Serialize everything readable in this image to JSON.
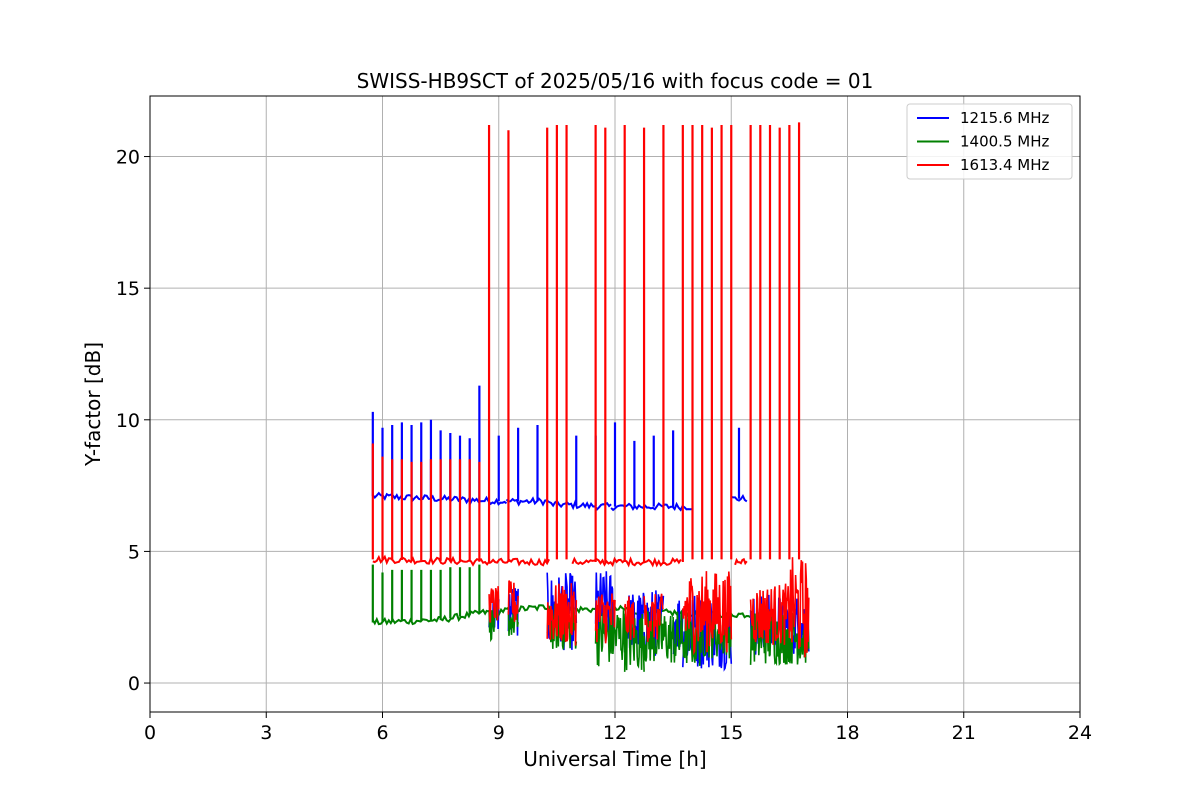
{
  "chart_data": {
    "type": "line",
    "title": "SWISS-HB9SCT of 2025/05/16 with focus code = 01",
    "xlabel": "Universal Time [h]",
    "ylabel": "Y-factor [dB]",
    "xlim": [
      0,
      24
    ],
    "ylim": [
      -1.1,
      22.3
    ],
    "xticks": [
      0,
      3,
      6,
      9,
      12,
      15,
      18,
      21,
      24
    ],
    "yticks": [
      0,
      5,
      10,
      15,
      20
    ],
    "grid": true,
    "legend_position": "top-right",
    "series": [
      {
        "name": "1215.6 MHz",
        "color": "#0000ff",
        "segments": [
          {
            "x": [
              5.75,
              9.2
            ],
            "y": [
              7.1,
              6.9
            ]
          },
          {
            "x": [
              9.2,
              10.3
            ],
            "y": [
              6.9,
              6.9
            ]
          },
          {
            "x": [
              10.3,
              11.9
            ],
            "y": [
              6.8,
              6.7
            ]
          },
          {
            "x": [
              11.9,
              14.0
            ],
            "y": [
              6.7,
              6.7
            ]
          },
          {
            "x": [
              15.0,
              15.4
            ],
            "y": [
              7.0,
              7.0
            ]
          }
        ],
        "spikes": [
          {
            "x": 5.75,
            "y": 10.3
          },
          {
            "x": 6.0,
            "y": 9.7
          },
          {
            "x": 6.25,
            "y": 9.8
          },
          {
            "x": 6.5,
            "y": 9.9
          },
          {
            "x": 6.75,
            "y": 9.8
          },
          {
            "x": 7.0,
            "y": 9.9
          },
          {
            "x": 7.25,
            "y": 10.0
          },
          {
            "x": 7.5,
            "y": 9.6
          },
          {
            "x": 7.75,
            "y": 9.5
          },
          {
            "x": 8.0,
            "y": 9.4
          },
          {
            "x": 8.25,
            "y": 9.3
          },
          {
            "x": 8.5,
            "y": 11.3
          },
          {
            "x": 9.0,
            "y": 9.4
          },
          {
            "x": 9.5,
            "y": 9.7
          },
          {
            "x": 10.0,
            "y": 9.8
          },
          {
            "x": 11.0,
            "y": 9.4
          },
          {
            "x": 11.5,
            "y": 9.4
          },
          {
            "x": 12.0,
            "y": 9.9
          },
          {
            "x": 12.5,
            "y": 9.2
          },
          {
            "x": 13.0,
            "y": 9.4
          },
          {
            "x": 13.5,
            "y": 9.6
          },
          {
            "x": 15.2,
            "y": 9.7
          }
        ]
      },
      {
        "name": "1400.5 MHz",
        "color": "#008000",
        "segments": [
          {
            "x": [
              5.75,
              7.5
            ],
            "y": [
              2.3,
              2.4
            ]
          },
          {
            "x": [
              7.5,
              8.7
            ],
            "y": [
              2.4,
              2.7
            ]
          },
          {
            "x": [
              8.7,
              10.3
            ],
            "y": [
              2.7,
              2.9
            ]
          },
          {
            "x": [
              10.3,
              12.5
            ],
            "y": [
              2.8,
              2.8
            ]
          },
          {
            "x": [
              12.5,
              15.5
            ],
            "y": [
              2.7,
              2.6
            ]
          }
        ],
        "spikes": [
          {
            "x": 5.75,
            "y": 4.5
          },
          {
            "x": 6.0,
            "y": 4.2
          },
          {
            "x": 6.25,
            "y": 4.3
          },
          {
            "x": 6.5,
            "y": 4.3
          },
          {
            "x": 6.75,
            "y": 4.3
          },
          {
            "x": 7.0,
            "y": 4.3
          },
          {
            "x": 7.25,
            "y": 4.3
          },
          {
            "x": 7.5,
            "y": 4.3
          },
          {
            "x": 7.75,
            "y": 4.4
          },
          {
            "x": 8.0,
            "y": 4.4
          },
          {
            "x": 8.25,
            "y": 4.4
          },
          {
            "x": 8.5,
            "y": 4.5
          }
        ]
      },
      {
        "name": "1613.4 MHz",
        "color": "#ff0000",
        "segments": [
          {
            "x": [
              5.75,
              8.75
            ],
            "y": [
              4.7,
              4.6
            ]
          },
          {
            "x": [
              8.75,
              10.3
            ],
            "y": [
              4.6,
              4.6
            ]
          },
          {
            "x": [
              10.9,
              13.7
            ],
            "y": [
              4.6,
              4.6
            ]
          },
          {
            "x": [
              15.1,
              15.4
            ],
            "y": [
              4.6,
              4.6
            ]
          }
        ],
        "spikes": [
          {
            "x": 5.75,
            "y": 9.1
          },
          {
            "x": 6.0,
            "y": 8.6
          },
          {
            "x": 6.25,
            "y": 8.5
          },
          {
            "x": 6.5,
            "y": 8.5
          },
          {
            "x": 6.75,
            "y": 8.4
          },
          {
            "x": 7.0,
            "y": 8.4
          },
          {
            "x": 7.25,
            "y": 8.5
          },
          {
            "x": 7.5,
            "y": 8.5
          },
          {
            "x": 7.75,
            "y": 8.5
          },
          {
            "x": 8.0,
            "y": 8.5
          },
          {
            "x": 8.25,
            "y": 8.5
          },
          {
            "x": 8.5,
            "y": 8.4
          },
          {
            "x": 8.75,
            "y": 21.2
          },
          {
            "x": 9.25,
            "y": 21.0
          },
          {
            "x": 10.25,
            "y": 21.1
          },
          {
            "x": 10.5,
            "y": 21.2
          },
          {
            "x": 10.75,
            "y": 21.2
          },
          {
            "x": 11.5,
            "y": 21.2
          },
          {
            "x": 11.75,
            "y": 21.1
          },
          {
            "x": 12.25,
            "y": 21.2
          },
          {
            "x": 12.75,
            "y": 21.1
          },
          {
            "x": 13.25,
            "y": 21.2
          },
          {
            "x": 13.75,
            "y": 21.2
          },
          {
            "x": 14.0,
            "y": 21.2
          },
          {
            "x": 14.25,
            "y": 21.2
          },
          {
            "x": 14.5,
            "y": 21.1
          },
          {
            "x": 14.75,
            "y": 21.2
          },
          {
            "x": 15.0,
            "y": 21.2
          },
          {
            "x": 15.5,
            "y": 21.2
          },
          {
            "x": 15.75,
            "y": 21.2
          },
          {
            "x": 16.0,
            "y": 21.2
          },
          {
            "x": 16.25,
            "y": 21.1
          },
          {
            "x": 16.5,
            "y": 21.2
          },
          {
            "x": 16.75,
            "y": 21.3
          }
        ]
      }
    ],
    "noise_regions": [
      {
        "series": "1215.6 MHz",
        "x": [
          8.75,
          9.0
        ],
        "ymin": 1.5,
        "ymax": 3.5
      },
      {
        "series": "1215.6 MHz",
        "x": [
          9.25,
          9.5
        ],
        "ymin": 1.4,
        "ymax": 3.8
      },
      {
        "series": "1215.6 MHz",
        "x": [
          10.25,
          11.0
        ],
        "ymin": 0.7,
        "ymax": 4.2
      },
      {
        "series": "1215.6 MHz",
        "x": [
          11.5,
          12.0
        ],
        "ymin": 0.9,
        "ymax": 4.3
      },
      {
        "series": "1215.6 MHz",
        "x": [
          12.25,
          12.75
        ],
        "ymin": 0.8,
        "ymax": 3.5
      },
      {
        "series": "1215.6 MHz",
        "x": [
          12.75,
          13.25
        ],
        "ymin": 0.5,
        "ymax": 3.6
      },
      {
        "series": "1215.6 MHz",
        "x": [
          13.5,
          13.75
        ],
        "ymin": 0.7,
        "ymax": 3.5
      },
      {
        "series": "1215.6 MHz",
        "x": [
          13.75,
          15.0
        ],
        "ymin": 0.0,
        "ymax": 3.5
      },
      {
        "series": "1215.6 MHz",
        "x": [
          15.5,
          17.0
        ],
        "ymin": 0.6,
        "ymax": 3.4
      },
      {
        "series": "1400.5 MHz",
        "x": [
          8.75,
          9.0
        ],
        "ymin": 1.4,
        "ymax": 2.9
      },
      {
        "series": "1400.5 MHz",
        "x": [
          9.25,
          9.5
        ],
        "ymin": 1.5,
        "ymax": 3.0
      },
      {
        "series": "1400.5 MHz",
        "x": [
          10.25,
          11.0
        ],
        "ymin": 0.9,
        "ymax": 3.0
      },
      {
        "series": "1400.5 MHz",
        "x": [
          11.5,
          12.25
        ],
        "ymin": 0.2,
        "ymax": 3.0
      },
      {
        "series": "1400.5 MHz",
        "x": [
          12.25,
          12.75
        ],
        "ymin": 0.0,
        "ymax": 2.8
      },
      {
        "series": "1400.5 MHz",
        "x": [
          12.75,
          13.5
        ],
        "ymin": 0.3,
        "ymax": 2.8
      },
      {
        "series": "1400.5 MHz",
        "x": [
          13.5,
          14.25
        ],
        "ymin": 0.2,
        "ymax": 2.8
      },
      {
        "series": "1400.5 MHz",
        "x": [
          14.25,
          15.0
        ],
        "ymin": 0.6,
        "ymax": 2.8
      },
      {
        "series": "1400.5 MHz",
        "x": [
          15.5,
          17.0
        ],
        "ymin": 0.3,
        "ymax": 2.8
      },
      {
        "series": "1613.4 MHz",
        "x": [
          8.75,
          9.0
        ],
        "ymin": 2.0,
        "ymax": 3.7
      },
      {
        "series": "1613.4 MHz",
        "x": [
          9.25,
          9.5
        ],
        "ymin": 1.8,
        "ymax": 3.9
      },
      {
        "series": "1613.4 MHz",
        "x": [
          10.25,
          11.0
        ],
        "ymin": 1.0,
        "ymax": 3.8
      },
      {
        "series": "1613.4 MHz",
        "x": [
          11.5,
          12.0
        ],
        "ymin": 1.1,
        "ymax": 3.6
      },
      {
        "series": "1613.4 MHz",
        "x": [
          12.25,
          12.5
        ],
        "ymin": 1.3,
        "ymax": 3.3
      },
      {
        "series": "1613.4 MHz",
        "x": [
          12.75,
          13.25
        ],
        "ymin": 1.2,
        "ymax": 3.4
      },
      {
        "series": "1613.4 MHz",
        "x": [
          13.75,
          15.0
        ],
        "ymin": 0.6,
        "ymax": 4.3
      },
      {
        "series": "1613.4 MHz",
        "x": [
          15.5,
          16.5
        ],
        "ymin": 1.0,
        "ymax": 3.8
      },
      {
        "series": "1613.4 MHz",
        "x": [
          16.5,
          17.0
        ],
        "ymin": 0.2,
        "ymax": 4.8
      }
    ]
  }
}
